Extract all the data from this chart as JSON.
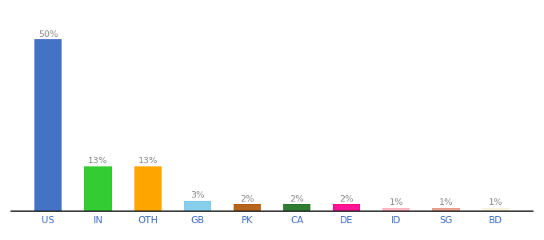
{
  "categories": [
    "US",
    "IN",
    "OTH",
    "GB",
    "PK",
    "CA",
    "DE",
    "ID",
    "SG",
    "BD"
  ],
  "values": [
    50,
    13,
    13,
    3,
    2,
    2,
    2,
    1,
    1,
    1
  ],
  "bar_colors": [
    "#4472c4",
    "#33cc33",
    "#ffa500",
    "#87ceeb",
    "#b5651d",
    "#2e7d32",
    "#ff1493",
    "#ffb6c1",
    "#e8a090",
    "#f5f0dc"
  ],
  "labels": [
    "50%",
    "13%",
    "13%",
    "3%",
    "2%",
    "2%",
    "2%",
    "1%",
    "1%",
    "1%"
  ],
  "label_color": "#888888",
  "tick_color": "#4472c4",
  "background_color": "#ffffff",
  "ylim": [
    0,
    58
  ],
  "bar_width": 0.55
}
